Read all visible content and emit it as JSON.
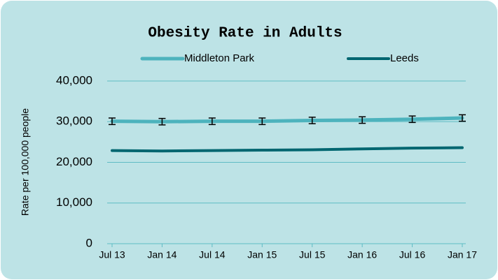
{
  "chart_data": {
    "type": "line",
    "title": "Obesity Rate in Adults",
    "y_label": "Rate per 100,000 people",
    "categories": [
      "Jul 13",
      "Jan 14",
      "Jul 14",
      "Jan 15",
      "Jul 15",
      "Jan 16",
      "Jul 16",
      "Jan 17"
    ],
    "series": [
      {
        "name": "Middleton Park",
        "color": "#4db3bd",
        "values": [
          30100,
          30000,
          30100,
          30100,
          30300,
          30400,
          30600,
          30900
        ],
        "errors": [
          800,
          800,
          800,
          800,
          800,
          800,
          800,
          800
        ]
      },
      {
        "name": "Leeds",
        "color": "#006670",
        "values": [
          22900,
          22800,
          22900,
          23000,
          23100,
          23300,
          23500,
          23600
        ]
      }
    ],
    "ylim": [
      0,
      40000
    ],
    "yticks": [
      0,
      {
        "value": 10000,
        "label": "10,000"
      },
      {
        "value": 20000,
        "label": "20,000"
      },
      {
        "value": 30000,
        "label": "30,000"
      },
      {
        "value": 40000,
        "label": "40,000"
      }
    ],
    "grid": true,
    "legend": "top"
  }
}
